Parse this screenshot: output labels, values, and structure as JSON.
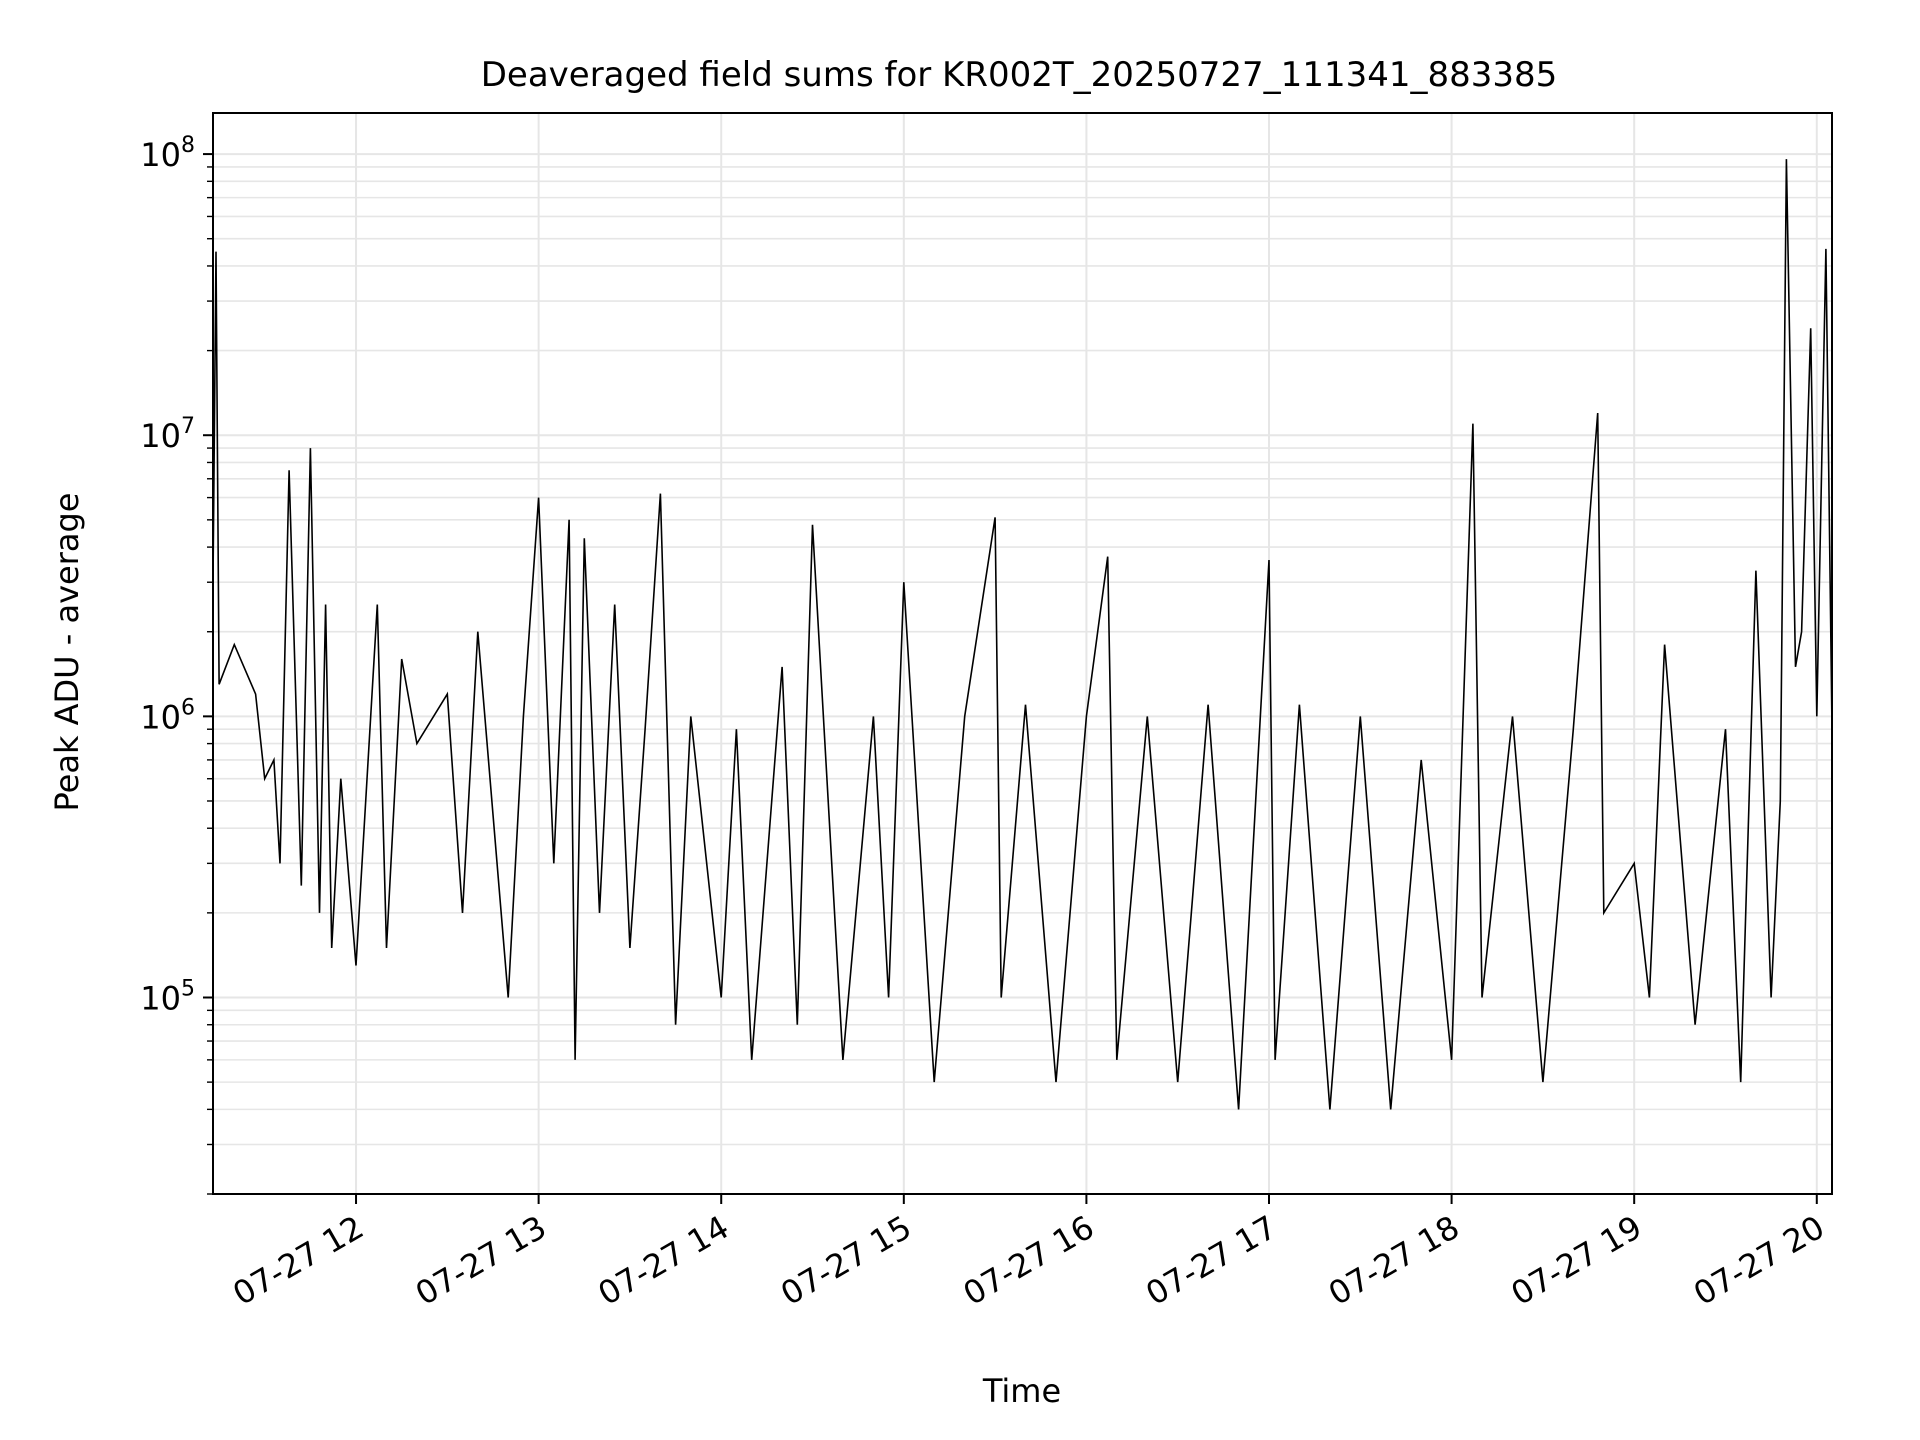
{
  "chart_data": {
    "type": "line",
    "title": "Deaveraged field sums for KR002T_20250727_111341_883385",
    "xlabel": "Time",
    "ylabel": "Peak ADU - average",
    "yscale": "log",
    "ylim": [
      20000,
      140000000
    ],
    "xlim": [
      "2025-07-27 11:13",
      "2025-07-27 20:05"
    ],
    "x_ticks": [
      {
        "value": "2025-07-27 12:00",
        "label": "07-27 12"
      },
      {
        "value": "2025-07-27 13:00",
        "label": "07-27 13"
      },
      {
        "value": "2025-07-27 14:00",
        "label": "07-27 14"
      },
      {
        "value": "2025-07-27 15:00",
        "label": "07-27 15"
      },
      {
        "value": "2025-07-27 16:00",
        "label": "07-27 16"
      },
      {
        "value": "2025-07-27 17:00",
        "label": "07-27 17"
      },
      {
        "value": "2025-07-27 18:00",
        "label": "07-27 18"
      },
      {
        "value": "2025-07-27 19:00",
        "label": "07-27 19"
      },
      {
        "value": "2025-07-27 20:00",
        "label": "07-27 20"
      }
    ],
    "y_ticks": [
      {
        "value": 100000,
        "base": "10",
        "exp": "5"
      },
      {
        "value": 1000000,
        "base": "10",
        "exp": "6"
      },
      {
        "value": 10000000,
        "base": "10",
        "exp": "7"
      },
      {
        "value": 100000000,
        "base": "10",
        "exp": "8"
      }
    ],
    "grid": true,
    "line_color": "#000000",
    "grid_color": "#e6e6e6",
    "series": [
      {
        "x": [
          "2025-07-27 11:13",
          "2025-07-27 11:14",
          "2025-07-27 11:15",
          "2025-07-27 11:20",
          "2025-07-27 11:27",
          "2025-07-27 11:30",
          "2025-07-27 11:33",
          "2025-07-27 11:35",
          "2025-07-27 11:38",
          "2025-07-27 11:42",
          "2025-07-27 11:45",
          "2025-07-27 11:48",
          "2025-07-27 11:50",
          "2025-07-27 11:52",
          "2025-07-27 11:55",
          "2025-07-27 12:00",
          "2025-07-27 12:07",
          "2025-07-27 12:10",
          "2025-07-27 12:15",
          "2025-07-27 12:20",
          "2025-07-27 12:30",
          "2025-07-27 12:35",
          "2025-07-27 12:40",
          "2025-07-27 12:50",
          "2025-07-27 12:55",
          "2025-07-27 13:00",
          "2025-07-27 13:05",
          "2025-07-27 13:10",
          "2025-07-27 13:12",
          "2025-07-27 13:15",
          "2025-07-27 13:20",
          "2025-07-27 13:25",
          "2025-07-27 13:30",
          "2025-07-27 13:35",
          "2025-07-27 13:40",
          "2025-07-27 13:45",
          "2025-07-27 13:50",
          "2025-07-27 14:00",
          "2025-07-27 14:05",
          "2025-07-27 14:10",
          "2025-07-27 14:20",
          "2025-07-27 14:25",
          "2025-07-27 14:30",
          "2025-07-27 14:40",
          "2025-07-27 14:50",
          "2025-07-27 14:55",
          "2025-07-27 15:00",
          "2025-07-27 15:10",
          "2025-07-27 15:20",
          "2025-07-27 15:30",
          "2025-07-27 15:32",
          "2025-07-27 15:40",
          "2025-07-27 15:50",
          "2025-07-27 16:00",
          "2025-07-27 16:07",
          "2025-07-27 16:10",
          "2025-07-27 16:20",
          "2025-07-27 16:30",
          "2025-07-27 16:40",
          "2025-07-27 16:50",
          "2025-07-27 17:00",
          "2025-07-27 17:02",
          "2025-07-27 17:10",
          "2025-07-27 17:20",
          "2025-07-27 17:30",
          "2025-07-27 17:40",
          "2025-07-27 17:50",
          "2025-07-27 18:00",
          "2025-07-27 18:07",
          "2025-07-27 18:10",
          "2025-07-27 18:20",
          "2025-07-27 18:30",
          "2025-07-27 18:40",
          "2025-07-27 18:48",
          "2025-07-27 18:50",
          "2025-07-27 19:00",
          "2025-07-27 19:05",
          "2025-07-27 19:10",
          "2025-07-27 19:20",
          "2025-07-27 19:30",
          "2025-07-27 19:35",
          "2025-07-27 19:40",
          "2025-07-27 19:45",
          "2025-07-27 19:48",
          "2025-07-27 19:50",
          "2025-07-27 19:53",
          "2025-07-27 19:55",
          "2025-07-27 19:58",
          "2025-07-27 20:00",
          "2025-07-27 20:03",
          "2025-07-27 20:05"
        ],
        "y": [
          3000000,
          45000000,
          1300000,
          1800000,
          1200000,
          600000,
          700000,
          300000,
          7500000,
          250000,
          9000000,
          200000,
          2500000,
          150000,
          600000,
          130000,
          2500000,
          150000,
          1600000,
          800000,
          1200000,
          200000,
          2000000,
          100000,
          1000000,
          6000000,
          300000,
          5000000,
          60000,
          4300000,
          200000,
          2500000,
          150000,
          900000,
          6200000,
          80000,
          1000000,
          100000,
          900000,
          60000,
          1500000,
          80000,
          4800000,
          60000,
          1000000,
          100000,
          3000000,
          50000,
          1000000,
          5100000,
          100000,
          1100000,
          50000,
          1000000,
          3700000,
          60000,
          1000000,
          50000,
          1100000,
          40000,
          3600000,
          60000,
          1100000,
          40000,
          1000000,
          40000,
          700000,
          60000,
          11000000,
          100000,
          1000000,
          50000,
          900000,
          12000000,
          200000,
          300000,
          100000,
          1800000,
          80000,
          900000,
          50000,
          3300000,
          100000,
          500000,
          96000000,
          1500000,
          2000000,
          24000000,
          1000000,
          46000000,
          900000
        ]
      }
    ]
  }
}
